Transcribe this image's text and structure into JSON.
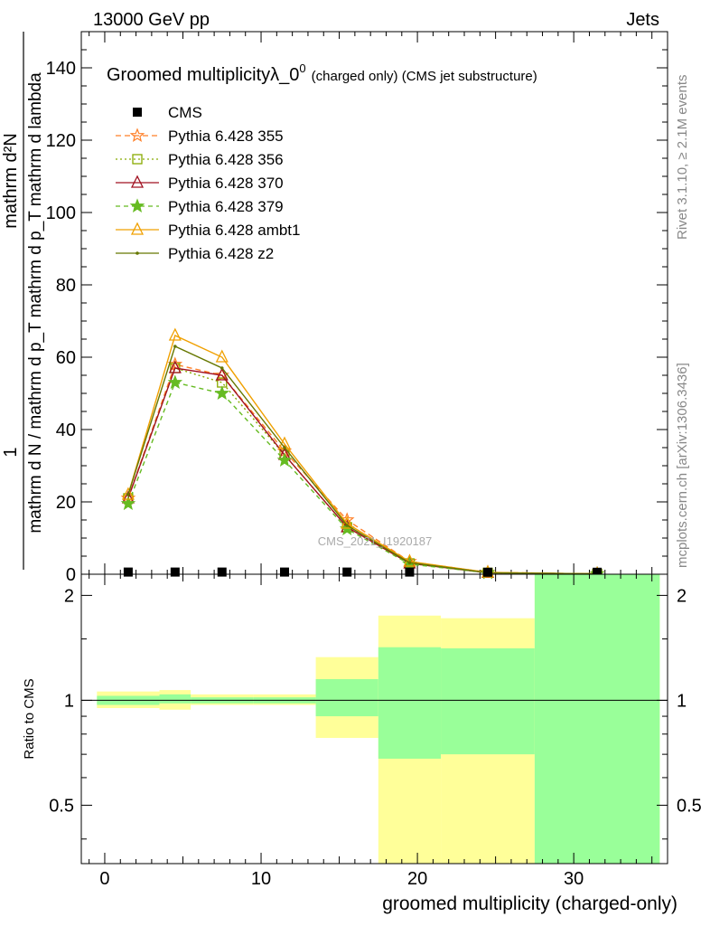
{
  "header": {
    "energy_label": "13000 GeV pp",
    "category_label": "Jets"
  },
  "side_labels": {
    "rivet": "Rivet 3.1.10, ≥ 2.1M events",
    "mcplots": "mcplots.cern.ch [arXiv:1306.3436]"
  },
  "watermark": "CMS_2021_I1920187",
  "chart_data": [
    {
      "type": "line",
      "panel": "main",
      "title_main": "Groomed multiplicityλ_0",
      "title_sup": "0",
      "title_suffix": "(charged only) (CMS jet substructure)",
      "ylabel_top": "1",
      "ylabel_num": "mathrm d²N",
      "ylabel_den": "mathrm d N / mathrm d p_T mathrm d p_T mathrm d lambda",
      "xlabel": "",
      "xlim": [
        -1.5,
        36
      ],
      "ylim": [
        0,
        150
      ],
      "yticks": [
        0,
        20,
        40,
        60,
        80,
        100,
        120,
        140
      ],
      "x": [
        1.5,
        4.5,
        7.5,
        11.5,
        15.5,
        19.5,
        24.5,
        31.5
      ],
      "cms": {
        "name": "CMS",
        "color": "#000000",
        "values": [
          0.1,
          0.1,
          0.1,
          0.1,
          0.1,
          0.1,
          0.05,
          0.05
        ]
      },
      "series": [
        {
          "name": "Pythia 6.428 355",
          "color": "#ff7f27",
          "dash": "6,4",
          "marker": "star-open",
          "values": [
            21,
            58,
            55,
            34,
            15,
            3.5,
            0.5,
            0.1
          ]
        },
        {
          "name": "Pythia 6.428 356",
          "color": "#88aa00",
          "dash": "2,3",
          "marker": "square-open",
          "values": [
            21,
            57,
            53,
            33,
            13,
            3,
            0.4,
            0.1
          ]
        },
        {
          "name": "Pythia 6.428 370",
          "color": "#a01020",
          "dash": "",
          "marker": "triangle-open",
          "values": [
            21,
            57,
            55,
            33,
            13,
            3,
            0.4,
            0.1
          ]
        },
        {
          "name": "Pythia 6.428 379",
          "color": "#66bb22",
          "dash": "5,4",
          "marker": "star-filled",
          "values": [
            19.5,
            53,
            50,
            31.5,
            12.5,
            2.8,
            0.4,
            0.1
          ]
        },
        {
          "name": "Pythia 6.428 ambt1",
          "color": "#f0a000",
          "dash": "",
          "marker": "triangle-open",
          "values": [
            22,
            66,
            60,
            36,
            14,
            3.5,
            0.5,
            0.1
          ]
        },
        {
          "name": "Pythia 6.428 z2",
          "color": "#667700",
          "dash": "",
          "marker": "dot",
          "values": [
            22,
            63,
            57,
            35,
            13.5,
            3.2,
            0.4,
            0.1
          ]
        }
      ]
    },
    {
      "type": "area",
      "panel": "ratio",
      "ylabel": "Ratio to CMS",
      "xlabel": "groomed multiplicity (charged-only)",
      "xlim": [
        -1.5,
        36
      ],
      "ylim": [
        0.34,
        2.3
      ],
      "scale": "log",
      "xticks": [
        0,
        10,
        20,
        30
      ],
      "yticks": [
        0.5,
        1,
        2
      ],
      "ytick_labels": [
        "0.5",
        "1",
        "2"
      ],
      "bins": [
        {
          "lo": -0.5,
          "hi": 3.5,
          "stat": [
            0.97,
            1.03
          ],
          "total": [
            0.95,
            1.06
          ]
        },
        {
          "lo": 3.5,
          "hi": 5.5,
          "stat": [
            0.98,
            1.04
          ],
          "total": [
            0.94,
            1.07
          ]
        },
        {
          "lo": 5.5,
          "hi": 9.5,
          "stat": [
            0.98,
            1.02
          ],
          "total": [
            0.97,
            1.04
          ]
        },
        {
          "lo": 9.5,
          "hi": 13.5,
          "stat": [
            0.98,
            1.02
          ],
          "total": [
            0.97,
            1.04
          ]
        },
        {
          "lo": 13.5,
          "hi": 17.5,
          "stat": [
            0.9,
            1.15
          ],
          "total": [
            0.78,
            1.33
          ]
        },
        {
          "lo": 17.5,
          "hi": 21.5,
          "stat": [
            0.68,
            1.42
          ],
          "total": [
            0.34,
            1.75
          ]
        },
        {
          "lo": 21.5,
          "hi": 27.5,
          "stat": [
            0.7,
            1.41
          ],
          "total": [
            0.34,
            1.72
          ]
        },
        {
          "lo": 27.5,
          "hi": 35.5,
          "stat": [
            0.34,
            2.3
          ],
          "total": [
            0.34,
            2.3
          ]
        }
      ],
      "stat_color": "#99ff99",
      "total_color": "#ffff99"
    }
  ]
}
